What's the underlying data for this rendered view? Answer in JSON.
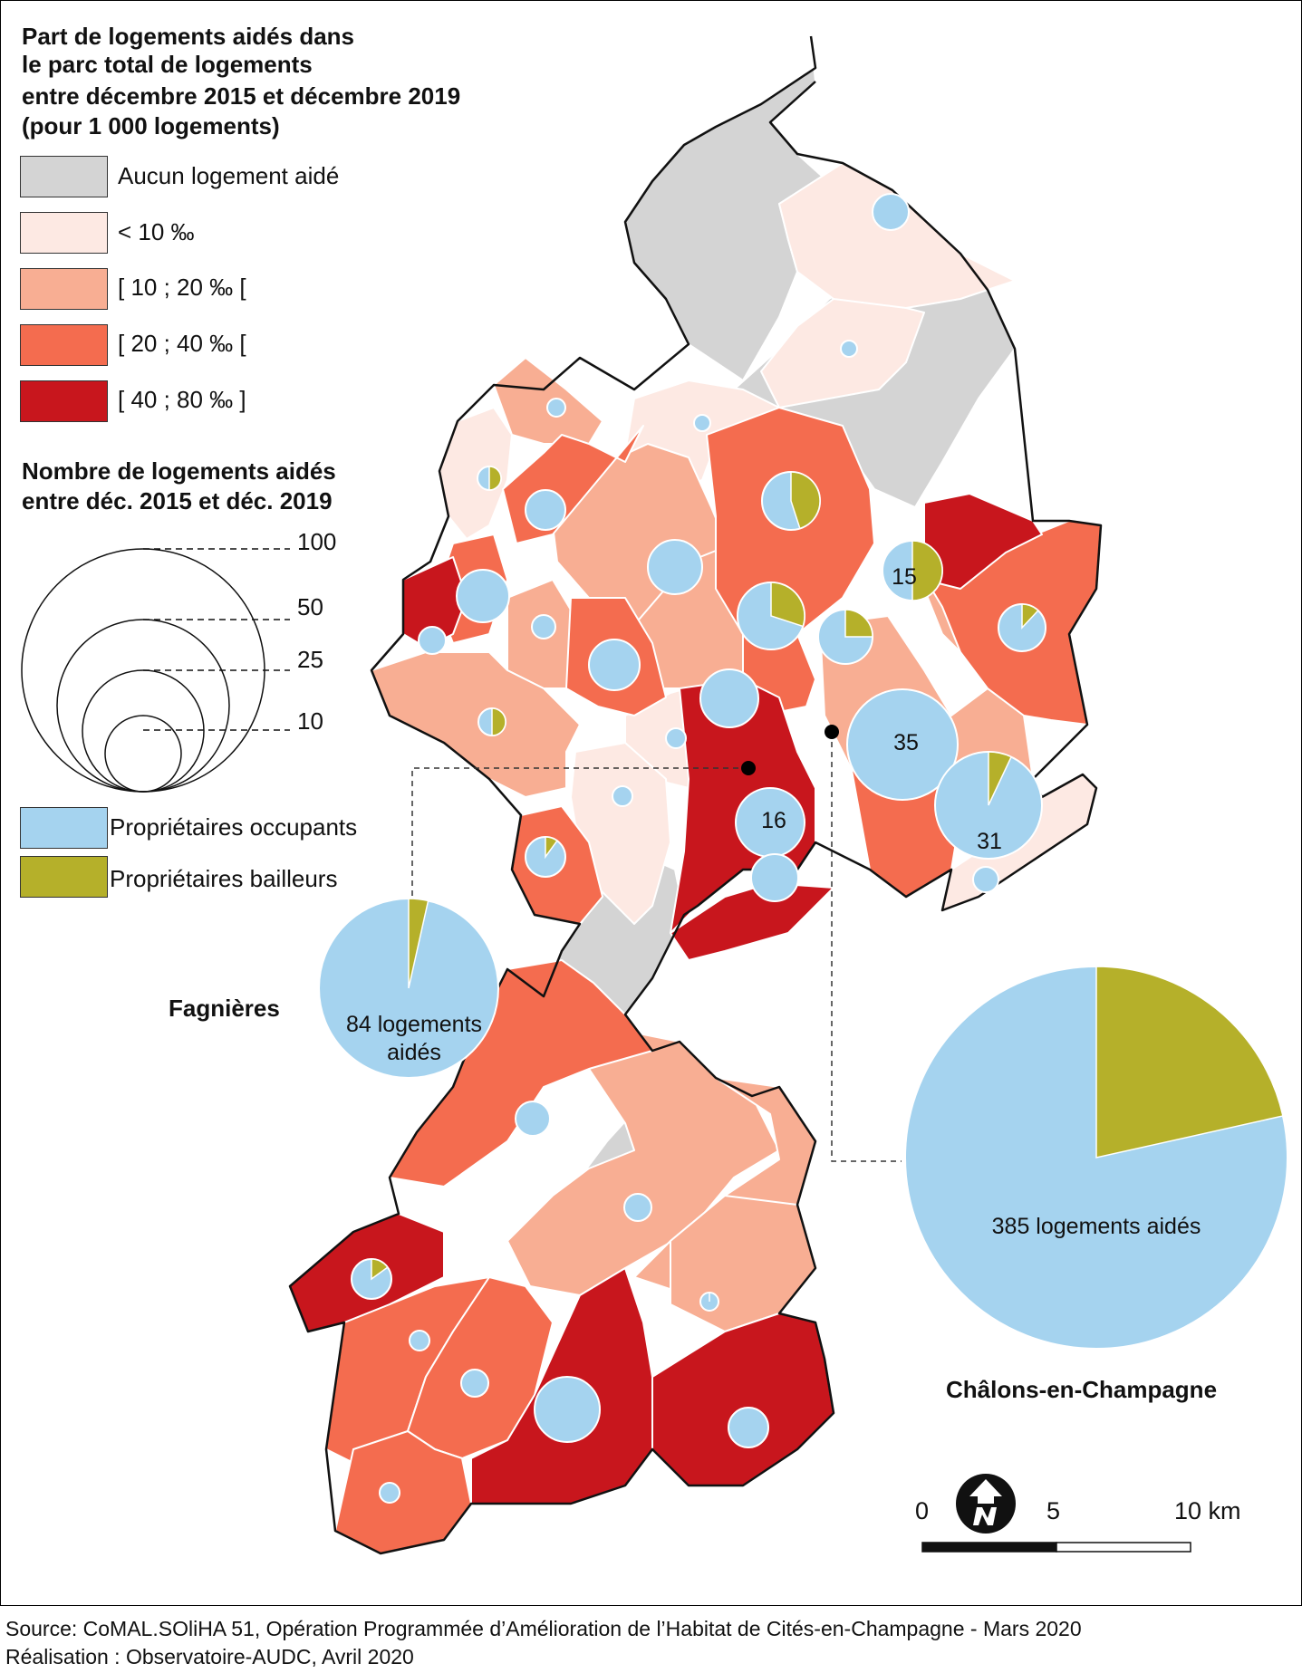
{
  "legend": {
    "title": [
      "Part de logements aidés dans",
      "le parc total de logements",
      "entre décembre 2015 et décembre 2019",
      "(pour 1 000 logements)"
    ],
    "classes": [
      {
        "label": "Aucun logement aidé",
        "color": "#d4d4d4"
      },
      {
        "label": "< 10 ‰",
        "color": "#fde9e3"
      },
      {
        "label": "[ 10 ; 20 ‰ [",
        "color": "#f8ae93"
      },
      {
        "label": "[ 20 ; 40 ‰ [",
        "color": "#f46c4f"
      },
      {
        "label": "[ 40 ; 80 ‰ ]",
        "color": "#c8161d"
      }
    ],
    "circle_title": [
      "Nombre de logements aidés",
      "entre déc. 2015 et déc. 2019"
    ],
    "circle_sizes": [
      "100",
      "50",
      "25",
      "10"
    ],
    "pie_colors": [
      {
        "label": "Propriétaires occupants",
        "color": "#a5d3ef"
      },
      {
        "label": "Propriétaires bailleurs",
        "color": "#b5b02a"
      }
    ]
  },
  "map_labels": {
    "n15": "15",
    "n35": "35",
    "n16": "16",
    "n31": "31"
  },
  "insets": {
    "fagnieres": {
      "name": "Fagnières",
      "text": [
        "84 logements",
        "aidés"
      ],
      "bailleurs_share": 0.035
    },
    "chalons": {
      "name": "Châlons-en-Champagne",
      "text": "385 logements aidés",
      "bailleurs_share": 0.215
    }
  },
  "scale": {
    "labels": [
      "0",
      "5",
      "10 km"
    ]
  },
  "north_icon": "north-arrow-icon",
  "footer": [
    "Source: CoMAL.SOliHA 51, Opération Programmée d’Amélioration de l’Habitat de Cités-en-Champagne - Mars 2020",
    "Réalisation : Observatoire-AUDC, Avril 2020"
  ]
}
